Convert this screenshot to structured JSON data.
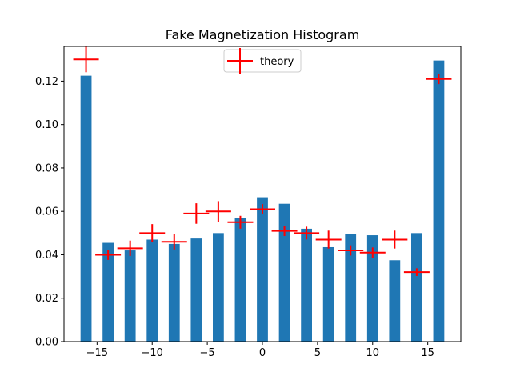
{
  "chart_data": {
    "type": "bar",
    "title": "Fake Magnetization Histogram",
    "xlabel": "",
    "ylabel": "",
    "xlim": [
      -18,
      18
    ],
    "ylim": [
      0,
      0.136
    ],
    "grid": false,
    "x_ticks": [
      -15,
      -10,
      -5,
      0,
      5,
      10,
      15
    ],
    "x_tick_labels": [
      "−15",
      "−10",
      "−5",
      "0",
      "5",
      "10",
      "15"
    ],
    "y_ticks": [
      0,
      0.02,
      0.04,
      0.06,
      0.08,
      0.1,
      0.12
    ],
    "y_tick_labels": [
      "0.00",
      "0.02",
      "0.04",
      "0.06",
      "0.08",
      "0.10",
      "0.12"
    ],
    "bar_color": "#1f77b4",
    "bar_width": 1,
    "bars": {
      "x": [
        -16,
        -14,
        -12,
        -10,
        -8,
        -6,
        -4,
        -2,
        0,
        2,
        4,
        6,
        8,
        10,
        12,
        14,
        16
      ],
      "values": [
        0.1225,
        0.0455,
        0.042,
        0.047,
        0.045,
        0.0475,
        0.05,
        0.057,
        0.0665,
        0.0635,
        0.052,
        0.0435,
        0.0495,
        0.049,
        0.0375,
        0.05,
        0.1295
      ]
    },
    "theory": {
      "name": "theory",
      "color": "#ff0000",
      "marker": "+",
      "x": [
        -16,
        -14,
        -12,
        -10,
        -8,
        -6,
        -4,
        -2,
        0,
        2,
        4,
        6,
        8,
        10,
        12,
        14,
        16
      ],
      "values": [
        0.13,
        0.04,
        0.043,
        0.05,
        0.046,
        0.059,
        0.06,
        0.055,
        0.061,
        0.051,
        0.05,
        0.047,
        0.042,
        0.041,
        0.047,
        0.032,
        0.121
      ],
      "marker_sizes": [
        1.0,
        0.4,
        0.6,
        0.7,
        0.6,
        0.8,
        0.8,
        0.5,
        0.4,
        0.4,
        0.5,
        0.7,
        0.4,
        0.4,
        0.7,
        0.3,
        0.4
      ]
    },
    "legend": {
      "labels": [
        "theory"
      ],
      "location": "upper center"
    }
  }
}
